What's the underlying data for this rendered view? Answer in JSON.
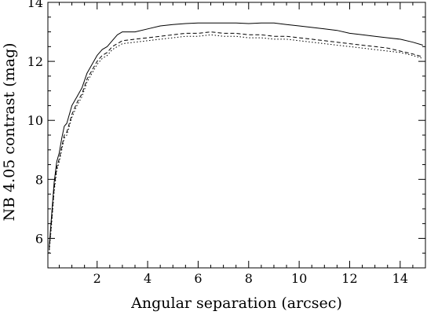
{
  "chart_data": {
    "type": "line",
    "title": "",
    "xlabel": "Angular separation (arcsec)",
    "ylabel": "NB 4.05 contrast (mag)",
    "xlim": [
      0.05,
      15.0
    ],
    "ylim": [
      5.0,
      14.0
    ],
    "xticks": [
      2,
      4,
      6,
      8,
      10,
      12,
      14
    ],
    "yticks": [
      6,
      8,
      10,
      12,
      14
    ],
    "grid": false,
    "legend": "none",
    "series": [
      {
        "line_style": "solid",
        "color": "#000000",
        "x": [
          0.1,
          0.2,
          0.3,
          0.4,
          0.5,
          0.6,
          0.7,
          0.8,
          1.0,
          1.2,
          1.4,
          1.6,
          1.8,
          2.0,
          2.2,
          2.4,
          2.6,
          2.8,
          3.0,
          3.5,
          4.0,
          4.5,
          5.0,
          5.5,
          6.0,
          6.5,
          7.0,
          7.5,
          8.0,
          8.5,
          9.0,
          9.5,
          10.0,
          10.5,
          11.0,
          11.5,
          12.0,
          12.5,
          13.0,
          13.5,
          14.0,
          14.5,
          14.9
        ],
        "y": [
          5.7,
          6.8,
          7.9,
          8.6,
          8.9,
          9.4,
          9.8,
          9.9,
          10.5,
          10.8,
          11.1,
          11.6,
          11.9,
          12.2,
          12.4,
          12.5,
          12.7,
          12.9,
          13.0,
          13.0,
          13.1,
          13.2,
          13.25,
          13.28,
          13.3,
          13.3,
          13.3,
          13.3,
          13.28,
          13.3,
          13.3,
          13.25,
          13.2,
          13.15,
          13.1,
          13.05,
          12.95,
          12.9,
          12.85,
          12.8,
          12.75,
          12.65,
          12.55
        ]
      },
      {
        "line_style": "dashed",
        "color": "#000000",
        "x": [
          0.1,
          0.2,
          0.3,
          0.4,
          0.5,
          0.6,
          0.7,
          0.8,
          1.0,
          1.2,
          1.4,
          1.6,
          1.8,
          2.0,
          2.2,
          2.4,
          2.6,
          2.8,
          3.0,
          3.5,
          4.0,
          4.5,
          5.0,
          5.5,
          6.0,
          6.5,
          7.0,
          7.5,
          8.0,
          8.5,
          9.0,
          9.5,
          10.0,
          10.5,
          11.0,
          11.5,
          12.0,
          12.5,
          13.0,
          13.5,
          14.0,
          14.5,
          14.9
        ],
        "y": [
          5.6,
          6.6,
          7.7,
          8.4,
          8.7,
          9.1,
          9.5,
          9.6,
          10.2,
          10.6,
          10.9,
          11.4,
          11.7,
          12.0,
          12.2,
          12.3,
          12.5,
          12.6,
          12.7,
          12.75,
          12.8,
          12.85,
          12.9,
          12.95,
          12.95,
          13.0,
          12.95,
          12.95,
          12.9,
          12.9,
          12.85,
          12.85,
          12.8,
          12.75,
          12.7,
          12.65,
          12.6,
          12.55,
          12.5,
          12.45,
          12.35,
          12.25,
          12.15
        ]
      },
      {
        "line_style": "dotted",
        "color": "#000000",
        "x": [
          0.1,
          0.2,
          0.3,
          0.4,
          0.5,
          0.6,
          0.7,
          0.8,
          1.0,
          1.2,
          1.4,
          1.6,
          1.8,
          2.0,
          2.2,
          2.4,
          2.6,
          2.8,
          3.0,
          3.5,
          4.0,
          4.5,
          5.0,
          5.5,
          6.0,
          6.5,
          7.0,
          7.5,
          8.0,
          8.5,
          9.0,
          9.5,
          10.0,
          10.5,
          11.0,
          11.5,
          12.0,
          12.5,
          13.0,
          13.5,
          14.0,
          14.5,
          14.9
        ],
        "y": [
          5.5,
          6.5,
          7.6,
          8.3,
          8.6,
          9.0,
          9.4,
          9.5,
          10.1,
          10.5,
          10.8,
          11.3,
          11.6,
          11.9,
          12.1,
          12.2,
          12.4,
          12.5,
          12.6,
          12.65,
          12.7,
          12.75,
          12.8,
          12.85,
          12.85,
          12.9,
          12.85,
          12.85,
          12.8,
          12.8,
          12.75,
          12.75,
          12.7,
          12.65,
          12.6,
          12.55,
          12.5,
          12.45,
          12.4,
          12.35,
          12.3,
          12.2,
          12.1
        ]
      }
    ]
  }
}
